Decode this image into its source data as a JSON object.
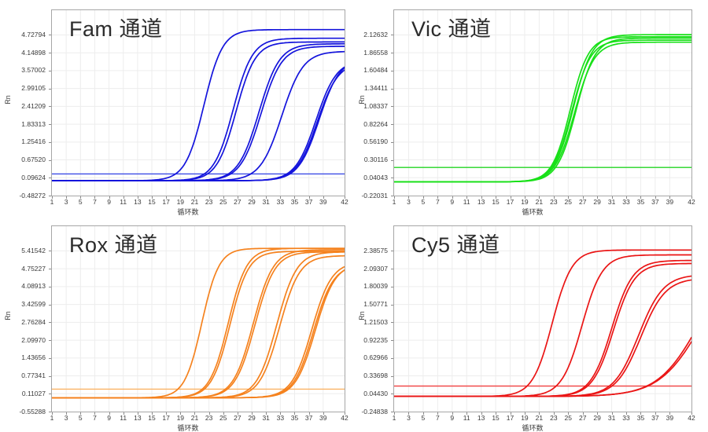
{
  "page": {
    "background": "#ffffff",
    "grid_color": "#ededed",
    "border_color": "#a6a6a6",
    "text_color": "#3a3a3a",
    "title_color": "#2b2b2b"
  },
  "chart_data": [
    {
      "type": "line",
      "title": "Fam 通道",
      "ylabel": "Rn",
      "xlabel": "循环数",
      "color": "#1414dc",
      "threshold_color": "#3c4ce6",
      "x_ticks": [
        1,
        3,
        5,
        7,
        9,
        11,
        13,
        15,
        17,
        19,
        21,
        23,
        25,
        27,
        29,
        31,
        33,
        35,
        37,
        39,
        42
      ],
      "xlim": [
        1,
        42
      ],
      "y_ticks": [
        "-0.48272",
        "0.09624",
        "0.67520",
        "1.25416",
        "1.83313",
        "2.41209",
        "2.99105",
        "3.57002",
        "4.14898",
        "4.72794"
      ],
      "ylim": [
        -0.48272,
        5.53
      ],
      "grid": true,
      "legend": "none",
      "threshold": 0.22,
      "baseline": 0.0,
      "curves": [
        {
          "ct": 22.3,
          "k": 1.3,
          "amp": 4.9
        },
        {
          "ct": 26.4,
          "k": 1.35,
          "amp": 4.62
        },
        {
          "ct": 26.8,
          "k": 1.35,
          "amp": 4.5
        },
        {
          "ct": 30.0,
          "k": 1.45,
          "amp": 4.44
        },
        {
          "ct": 30.3,
          "k": 1.45,
          "amp": 4.36
        },
        {
          "ct": 33.2,
          "k": 1.5,
          "amp": 4.2
        },
        {
          "ct": 38.0,
          "k": 1.45,
          "amp": 3.92
        },
        {
          "ct": 38.2,
          "k": 1.45,
          "amp": 3.85
        },
        {
          "ct": 38.45,
          "k": 1.45,
          "amp": 3.98
        }
      ]
    },
    {
      "type": "line",
      "title": "Vic 通道",
      "ylabel": "Rn",
      "xlabel": "循环数",
      "color": "#19e019",
      "threshold_color": "#23d523",
      "x_ticks": [
        1,
        3,
        5,
        7,
        9,
        11,
        13,
        15,
        17,
        19,
        21,
        23,
        25,
        27,
        29,
        31,
        33,
        35,
        37,
        39,
        42
      ],
      "xlim": [
        1,
        42
      ],
      "y_ticks": [
        "-0.22031",
        "0.04043",
        "0.30116",
        "0.56190",
        "0.82264",
        "1.08337",
        "1.34411",
        "1.60484",
        "1.86558",
        "2.12632"
      ],
      "ylim": [
        -0.22031,
        2.487
      ],
      "grid": true,
      "legend": "none",
      "threshold": 0.19,
      "baseline": -0.02,
      "curves": [
        {
          "ct": 25.3,
          "k": 1.25,
          "amp": 2.12
        },
        {
          "ct": 25.5,
          "k": 1.3,
          "amp": 2.07
        },
        {
          "ct": 25.7,
          "k": 1.3,
          "amp": 2.15
        },
        {
          "ct": 25.9,
          "k": 1.35,
          "amp": 2.04
        },
        {
          "ct": 26.1,
          "k": 1.3,
          "amp": 2.1
        }
      ]
    },
    {
      "type": "line",
      "title": "Rox 通道",
      "ylabel": "Rn",
      "xlabel": "循环数",
      "color": "#f5821e",
      "threshold_color": "#fbb264",
      "x_ticks": [
        1,
        3,
        5,
        7,
        9,
        11,
        13,
        15,
        17,
        19,
        21,
        23,
        25,
        27,
        29,
        31,
        33,
        35,
        37,
        39,
        42
      ],
      "xlim": [
        1,
        42
      ],
      "y_ticks": [
        "-0.55288",
        "0.11027",
        "0.77341",
        "1.43656",
        "2.09970",
        "2.76284",
        "3.42599",
        "4.08913",
        "4.75227",
        "5.41542"
      ],
      "ylim": [
        -0.55288,
        6.332
      ],
      "grid": true,
      "legend": "none",
      "threshold": 0.28,
      "baseline": -0.04,
      "curves": [
        {
          "ct": 22.0,
          "k": 1.2,
          "amp": 5.55
        },
        {
          "ct": 25.7,
          "k": 1.3,
          "amp": 5.55
        },
        {
          "ct": 25.95,
          "k": 1.3,
          "amp": 5.44
        },
        {
          "ct": 29.2,
          "k": 1.4,
          "amp": 5.5
        },
        {
          "ct": 29.45,
          "k": 1.4,
          "amp": 5.42
        },
        {
          "ct": 32.5,
          "k": 1.4,
          "amp": 5.42
        },
        {
          "ct": 32.9,
          "k": 1.4,
          "amp": 5.28
        },
        {
          "ct": 37.4,
          "k": 1.4,
          "amp": 5.05
        },
        {
          "ct": 37.65,
          "k": 1.4,
          "amp": 4.95
        },
        {
          "ct": 37.9,
          "k": 1.4,
          "amp": 5.0
        }
      ]
    },
    {
      "type": "line",
      "title": "Cy5 通道",
      "ylabel": "Rn",
      "xlabel": "循环数",
      "color": "#ea1515",
      "threshold_color": "#f14b4b",
      "x_ticks": [
        1,
        3,
        5,
        7,
        9,
        11,
        13,
        15,
        17,
        19,
        21,
        23,
        25,
        27,
        29,
        31,
        33,
        35,
        37,
        39,
        42
      ],
      "xlim": [
        1,
        42
      ],
      "y_ticks": [
        "-0.24838",
        "0.04430",
        "0.33698",
        "0.62966",
        "0.92235",
        "1.21503",
        "1.50771",
        "1.80039",
        "2.09307",
        "2.38575"
      ],
      "ylim": [
        -0.24838,
        2.79
      ],
      "grid": true,
      "legend": "none",
      "threshold": 0.17,
      "baseline": 0.0,
      "curves": [
        {
          "ct": 22.8,
          "k": 1.35,
          "amp": 2.4
        },
        {
          "ct": 26.9,
          "k": 1.4,
          "amp": 2.32
        },
        {
          "ct": 31.0,
          "k": 1.45,
          "amp": 2.23
        },
        {
          "ct": 31.25,
          "k": 1.45,
          "amp": 2.18
        },
        {
          "ct": 34.7,
          "k": 1.7,
          "amp": 2.0
        },
        {
          "ct": 35.0,
          "k": 1.7,
          "amp": 1.94
        },
        {
          "ct": 42.9,
          "k": 2.8,
          "amp": 2.3
        },
        {
          "ct": 43.3,
          "k": 2.9,
          "amp": 2.3
        }
      ]
    }
  ]
}
